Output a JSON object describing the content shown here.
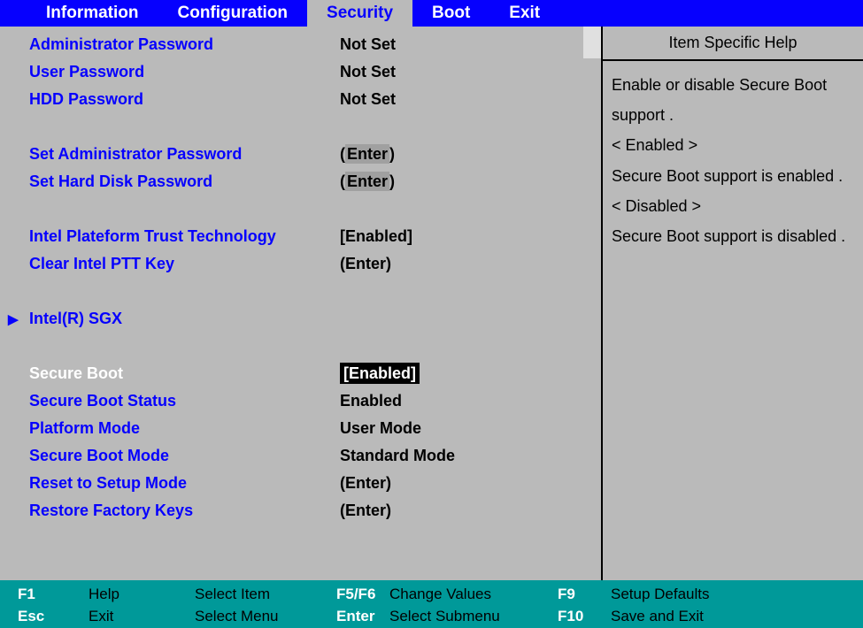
{
  "colors": {
    "menubar_bg": "#0600fe",
    "menubar_text": "#ffffff",
    "active_tab_bg": "#bababa",
    "active_tab_text": "#0600fe",
    "panel_bg": "#bababa",
    "label_text": "#0600fe",
    "value_text": "#000000",
    "selected_label_text": "#ffffff",
    "selected_value_bg": "#000000",
    "selected_value_text": "#ffffff",
    "enter_box_bg": "#a0a0a0",
    "footer_bg": "#009999",
    "footer_key_text": "#ffffff",
    "footer_text": "#000000",
    "border": "#000000",
    "scroll_thumb": "#e0e0e0"
  },
  "menubar": {
    "tabs": [
      {
        "label": "Information",
        "active": false
      },
      {
        "label": "Configuration",
        "active": false
      },
      {
        "label": "Security",
        "active": true
      },
      {
        "label": "Boot",
        "active": false
      },
      {
        "label": "Exit",
        "active": false
      }
    ]
  },
  "items": {
    "admin_password": {
      "label": "Administrator Password",
      "value": "Not Set"
    },
    "user_password": {
      "label": "User Password",
      "value": "Not Set"
    },
    "hdd_password": {
      "label": "HDD Password",
      "value": "Not Set"
    },
    "set_admin_password": {
      "label": "Set Administrator Password",
      "prefix": "(",
      "enter": "Enter",
      "suffix": ")"
    },
    "set_hdd_password": {
      "label": "Set Hard Disk Password",
      "prefix": "(",
      "enter": "Enter",
      "suffix": ")"
    },
    "intel_ptt": {
      "label": "Intel Plateform Trust Technology",
      "value": "[Enabled]"
    },
    "clear_ptt": {
      "label": "Clear Intel PTT Key",
      "value": "(Enter)"
    },
    "intel_sgx": {
      "label": "Intel(R) SGX"
    },
    "secure_boot": {
      "label": "Secure Boot",
      "value": "[Enabled]"
    },
    "secure_boot_status": {
      "label": "Secure Boot Status",
      "value": "Enabled"
    },
    "platform_mode": {
      "label": "Platform Mode",
      "value": "User Mode"
    },
    "secure_boot_mode": {
      "label": "Secure Boot Mode",
      "value": "Standard Mode"
    },
    "reset_setup": {
      "label": "Reset to Setup Mode",
      "value": "(Enter)"
    },
    "restore_factory": {
      "label": "Restore Factory Keys",
      "value": "(Enter)"
    }
  },
  "help": {
    "title": "Item Specific Help",
    "lines": [
      "Enable or disable Secure Boot support .",
      "< Enabled >",
      "Secure Boot support is enabled .",
      "< Disabled >",
      "Secure Boot support is disabled ."
    ]
  },
  "footer": {
    "row1": {
      "k1": "F1",
      "a1": "Help",
      "a2": "Select Item",
      "k2": "F5/F6",
      "a3": "Change Values",
      "k3": "F9",
      "a4": "Setup Defaults"
    },
    "row2": {
      "k1": "Esc",
      "a1": "Exit",
      "a2": "Select Menu",
      "k2": "Enter",
      "a3": "Select Submenu",
      "k3": "F10",
      "a4": "Save and Exit"
    }
  }
}
